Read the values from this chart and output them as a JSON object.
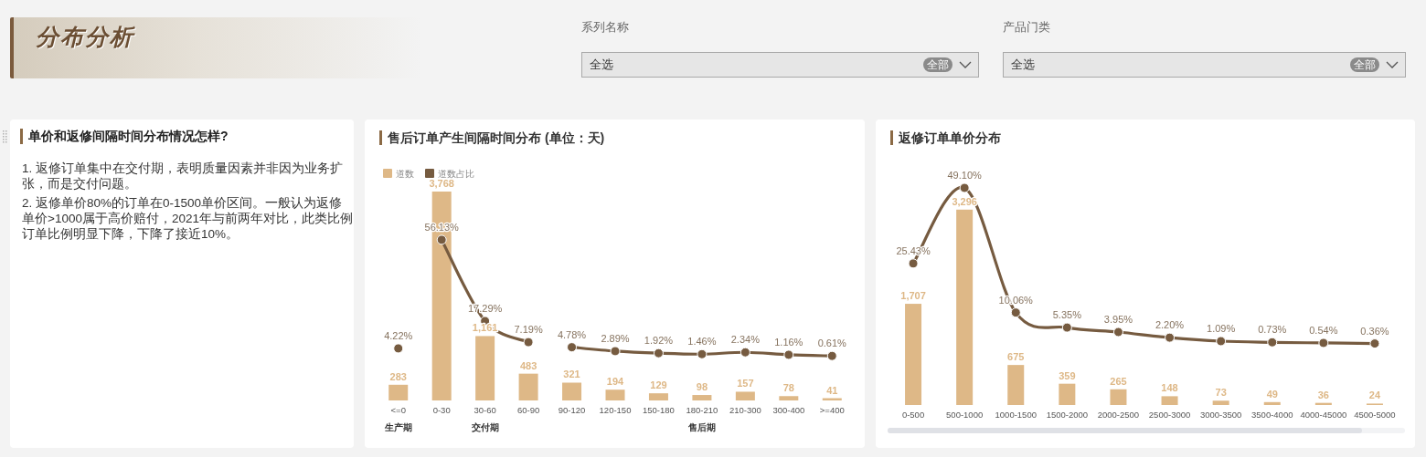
{
  "chart_data": [
    {
      "type": "other",
      "title": "分布分析",
      "annotations": [
        "系列名称",
        "全选",
        "全部",
        "产品门类",
        "全选",
        "全部"
      ]
    },
    {
      "type": "other",
      "title": "单价和返修间隔时间分布情况怎样?",
      "annotations": [
        "1. 返修订单集中在交付期，表明质量因素并非因为业务扩张，而是交付问题。",
        "2. 返修单价80%的订单在0-1500单价区间。一般认为返修单价>1000属于高价赔付，2021年与前两年对比，此类比例订单比例明显下降，下降了接近10%。"
      ]
    },
    {
      "type": "bar",
      "title": "售后订单产生间隔时间分布 (单位：天)",
      "categories": [
        "<=0",
        "0-30",
        "30-60",
        "60-90",
        "90-120",
        "120-150",
        "150-180",
        "180-210",
        "210-300",
        "300-400",
        ">=400"
      ],
      "series": [
        {
          "name": "道数",
          "type": "bar",
          "color": "#deb887",
          "values": [
            283,
            3768,
            1161,
            483,
            321,
            194,
            129,
            98,
            157,
            78,
            41
          ],
          "value_labels": [
            "283",
            "3,768",
            "1,161",
            "483",
            "321",
            "194",
            "129",
            "98",
            "157",
            "78",
            "41"
          ]
        },
        {
          "name": "道数占比",
          "type": "line",
          "axis": "y2",
          "color": "#765b40",
          "values": [
            4.22,
            null,
            null,
            null,
            null,
            null,
            null,
            null,
            null,
            null,
            null
          ],
          "value_labels": [
            "4.22%",
            null,
            null,
            null,
            null,
            null,
            null,
            null,
            null,
            null,
            null
          ]
        },
        {
          "type": "line",
          "axis": "y2",
          "color": "#765b40",
          "values": [
            null,
            56.13,
            17.29,
            7.19,
            null,
            null,
            null,
            null,
            null,
            null,
            null
          ],
          "value_labels": [
            null,
            "56.13%",
            "17.29%",
            "7.19%",
            null,
            null,
            null,
            null,
            null,
            null,
            null
          ]
        },
        {
          "type": "line",
          "axis": "y2",
          "color": "#765b40",
          "values": [
            null,
            null,
            null,
            null,
            4.78,
            2.89,
            1.92,
            1.46,
            2.34,
            1.16,
            0.61
          ],
          "value_labels": [
            null,
            null,
            null,
            null,
            "4.78%",
            "2.89%",
            "1.92%",
            "1.46%",
            "2.34%",
            "1.16%",
            "0.61%"
          ]
        }
      ],
      "marker": "circle",
      "legend": "top left",
      "annotations": [
        "生产期",
        "交付期",
        "售后期"
      ]
    },
    {
      "type": "bar",
      "title": "返修订单单价分布",
      "categories": [
        "0-500",
        "500-1000",
        "1000-1500",
        "1500-2000",
        "2000-2500",
        "2500-3000",
        "3000-3500",
        "3500-4000",
        "4000-45000",
        "4500-5000"
      ],
      "series": [
        {
          "type": "bar",
          "color": "#deb887",
          "values": [
            1707,
            3296,
            675,
            359,
            265,
            148,
            73,
            49,
            36,
            24
          ],
          "value_labels": [
            "1,707",
            "3,296",
            "675",
            "359",
            "265",
            "148",
            "73",
            "49",
            "36",
            "24"
          ]
        },
        {
          "type": "line",
          "axis": "y2",
          "color": "#765b40",
          "values": [
            25.43,
            49.1,
            10.06,
            5.35,
            3.95,
            2.2,
            1.09,
            0.73,
            0.54,
            0.36
          ],
          "value_labels": [
            "25.43%",
            "49.10%",
            "10.06%",
            "5.35%",
            "3.95%",
            "2.20%",
            "1.09%",
            "0.73%",
            "0.54%",
            "0.36%"
          ]
        }
      ],
      "marker": "circle"
    }
  ]
}
